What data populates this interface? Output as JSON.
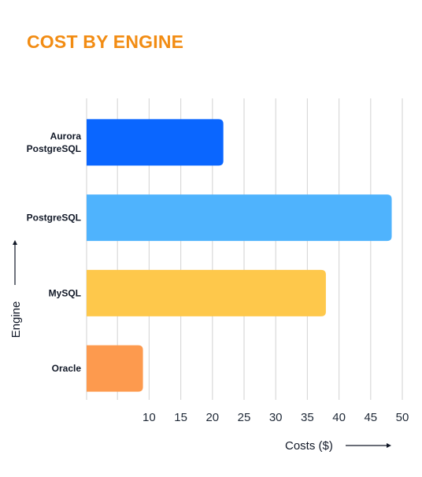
{
  "chart_data": {
    "type": "bar",
    "orientation": "horizontal",
    "title": "COST BY ENGINE",
    "xlabel": "Costs ($)",
    "ylabel": "Engine",
    "categories": [
      "Aurora PostgreSQL",
      "PostgreSQL",
      "MySQL",
      "Oracle"
    ],
    "category_lines": [
      [
        "Aurora",
        "PostgreSQL"
      ],
      [
        "PostgreSQL"
      ],
      [
        "MySQL"
      ],
      [
        "Oracle"
      ]
    ],
    "values": [
      21.6,
      48.2,
      37.8,
      8.9
    ],
    "colors": [
      "#0a66ff",
      "#4fb3fd",
      "#fec84b",
      "#fd9a4e"
    ],
    "xticks": [
      10,
      15,
      20,
      25,
      30,
      35,
      40,
      45,
      50
    ],
    "xlim": [
      0,
      50
    ],
    "grid": true,
    "title_color": "#f28c13"
  }
}
